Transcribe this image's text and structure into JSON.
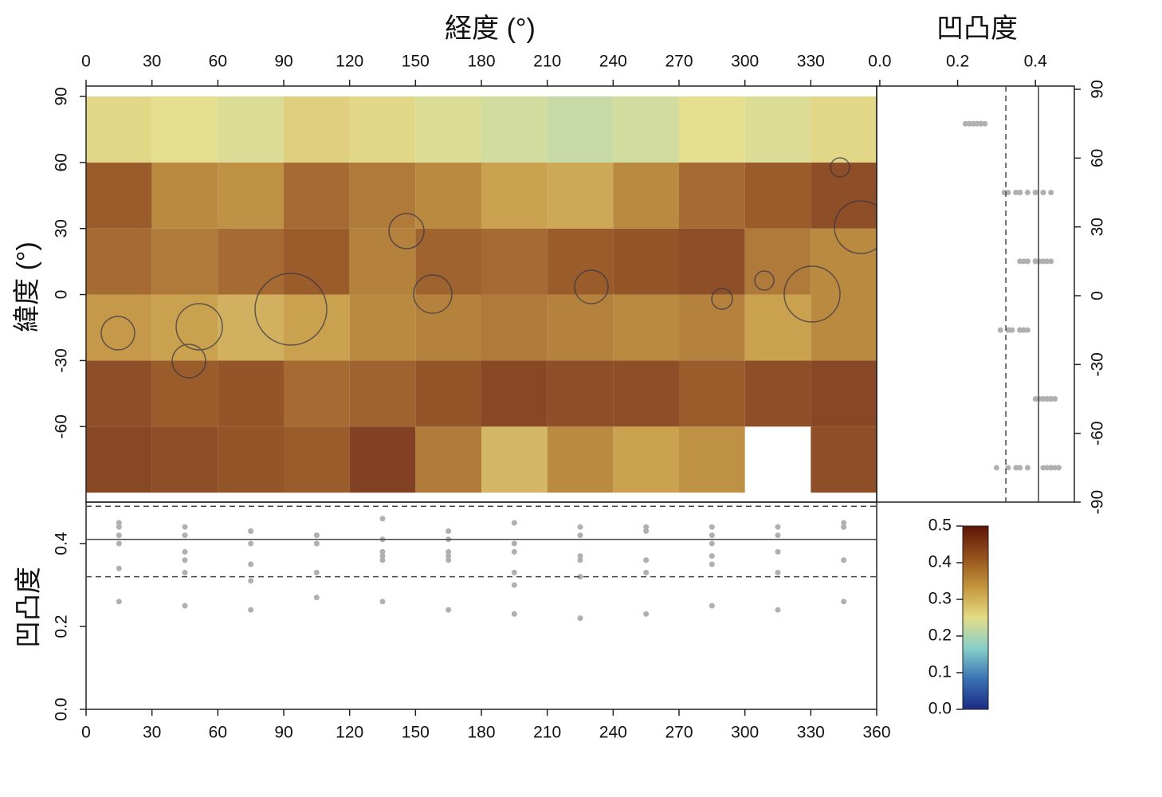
{
  "chart_data": [
    {
      "type": "heatmap",
      "x_label": "経度 (°)",
      "y_label": "緯度 (°)",
      "x": [
        15,
        45,
        75,
        105,
        135,
        165,
        195,
        225,
        255,
        285,
        315,
        345
      ],
      "y": [
        -75,
        -45,
        -15,
        15,
        45,
        75
      ],
      "z": [
        [
          0.45,
          0.44,
          0.43,
          0.42,
          0.46,
          0.38,
          0.3,
          0.36,
          0.33,
          0.35,
          null,
          0.44
        ],
        [
          0.44,
          0.42,
          0.43,
          0.4,
          0.41,
          0.43,
          0.45,
          0.44,
          0.44,
          0.42,
          0.44,
          0.45
        ],
        [
          0.34,
          0.33,
          0.31,
          0.33,
          0.36,
          0.37,
          0.38,
          0.37,
          0.36,
          0.37,
          0.33,
          0.36
        ],
        [
          0.4,
          0.38,
          0.4,
          0.42,
          0.37,
          0.41,
          0.4,
          0.42,
          0.43,
          0.44,
          0.38,
          0.36
        ],
        [
          0.42,
          0.36,
          0.35,
          0.4,
          0.38,
          0.36,
          0.33,
          0.32,
          0.36,
          0.4,
          0.42,
          0.44
        ],
        [
          0.26,
          0.25,
          0.24,
          0.27,
          0.26,
          0.24,
          0.23,
          0.22,
          0.23,
          0.25,
          0.24,
          0.26
        ]
      ],
      "xlim": [
        0,
        360
      ],
      "xticks": [
        0,
        30,
        60,
        90,
        120,
        150,
        180,
        210,
        240,
        270,
        300,
        330
      ],
      "ylim": [
        -94.3,
        94.7
      ],
      "yticks": [
        90,
        60,
        30,
        0,
        -30,
        -60
      ]
    },
    {
      "type": "scatter",
      "x_label": "凹凸度",
      "color": "#b0b0b0",
      "xlim": [
        -0.008,
        0.5
      ],
      "xticks": [
        {
          "value": 0,
          "label": "0.0"
        },
        0.2,
        0.4
      ],
      "ylim": [
        -90,
        91.4
      ],
      "yticks": [
        90,
        60,
        30,
        0,
        -30,
        -60,
        -90
      ],
      "ref_lines": [
        {
          "value": 0.324,
          "dash": true
        },
        {
          "value": 0.408,
          "dash": false
        }
      ]
    },
    {
      "type": "scatter",
      "y_label": "凹凸度",
      "color": "#b0b0b0",
      "xlim": [
        0,
        360
      ],
      "xticks": [
        0,
        30,
        60,
        90,
        120,
        150,
        180,
        210,
        240,
        270,
        300,
        330,
        360
      ],
      "ylim": [
        0,
        0.5
      ],
      "yticks": [
        {
          "value": 0,
          "label": "0.0"
        },
        0.2,
        0.4
      ],
      "ref_lines": [
        {
          "value": 0.49,
          "dash": true
        },
        {
          "value": 0.41,
          "dash": false
        },
        {
          "value": 0.32,
          "dash": true
        }
      ]
    },
    {
      "type": "colorbar",
      "ylim": [
        0,
        0.5
      ],
      "yticks": [
        {
          "value": 0,
          "label": "0.0"
        },
        0.1,
        0.2,
        0.3,
        0.4,
        0.5
      ],
      "colors": [
        "#1b2a84",
        "#3a72b4",
        "#86cfc9",
        "#e3dc86",
        "#c4963c",
        "#93501a",
        "#5e1407"
      ]
    }
  ]
}
